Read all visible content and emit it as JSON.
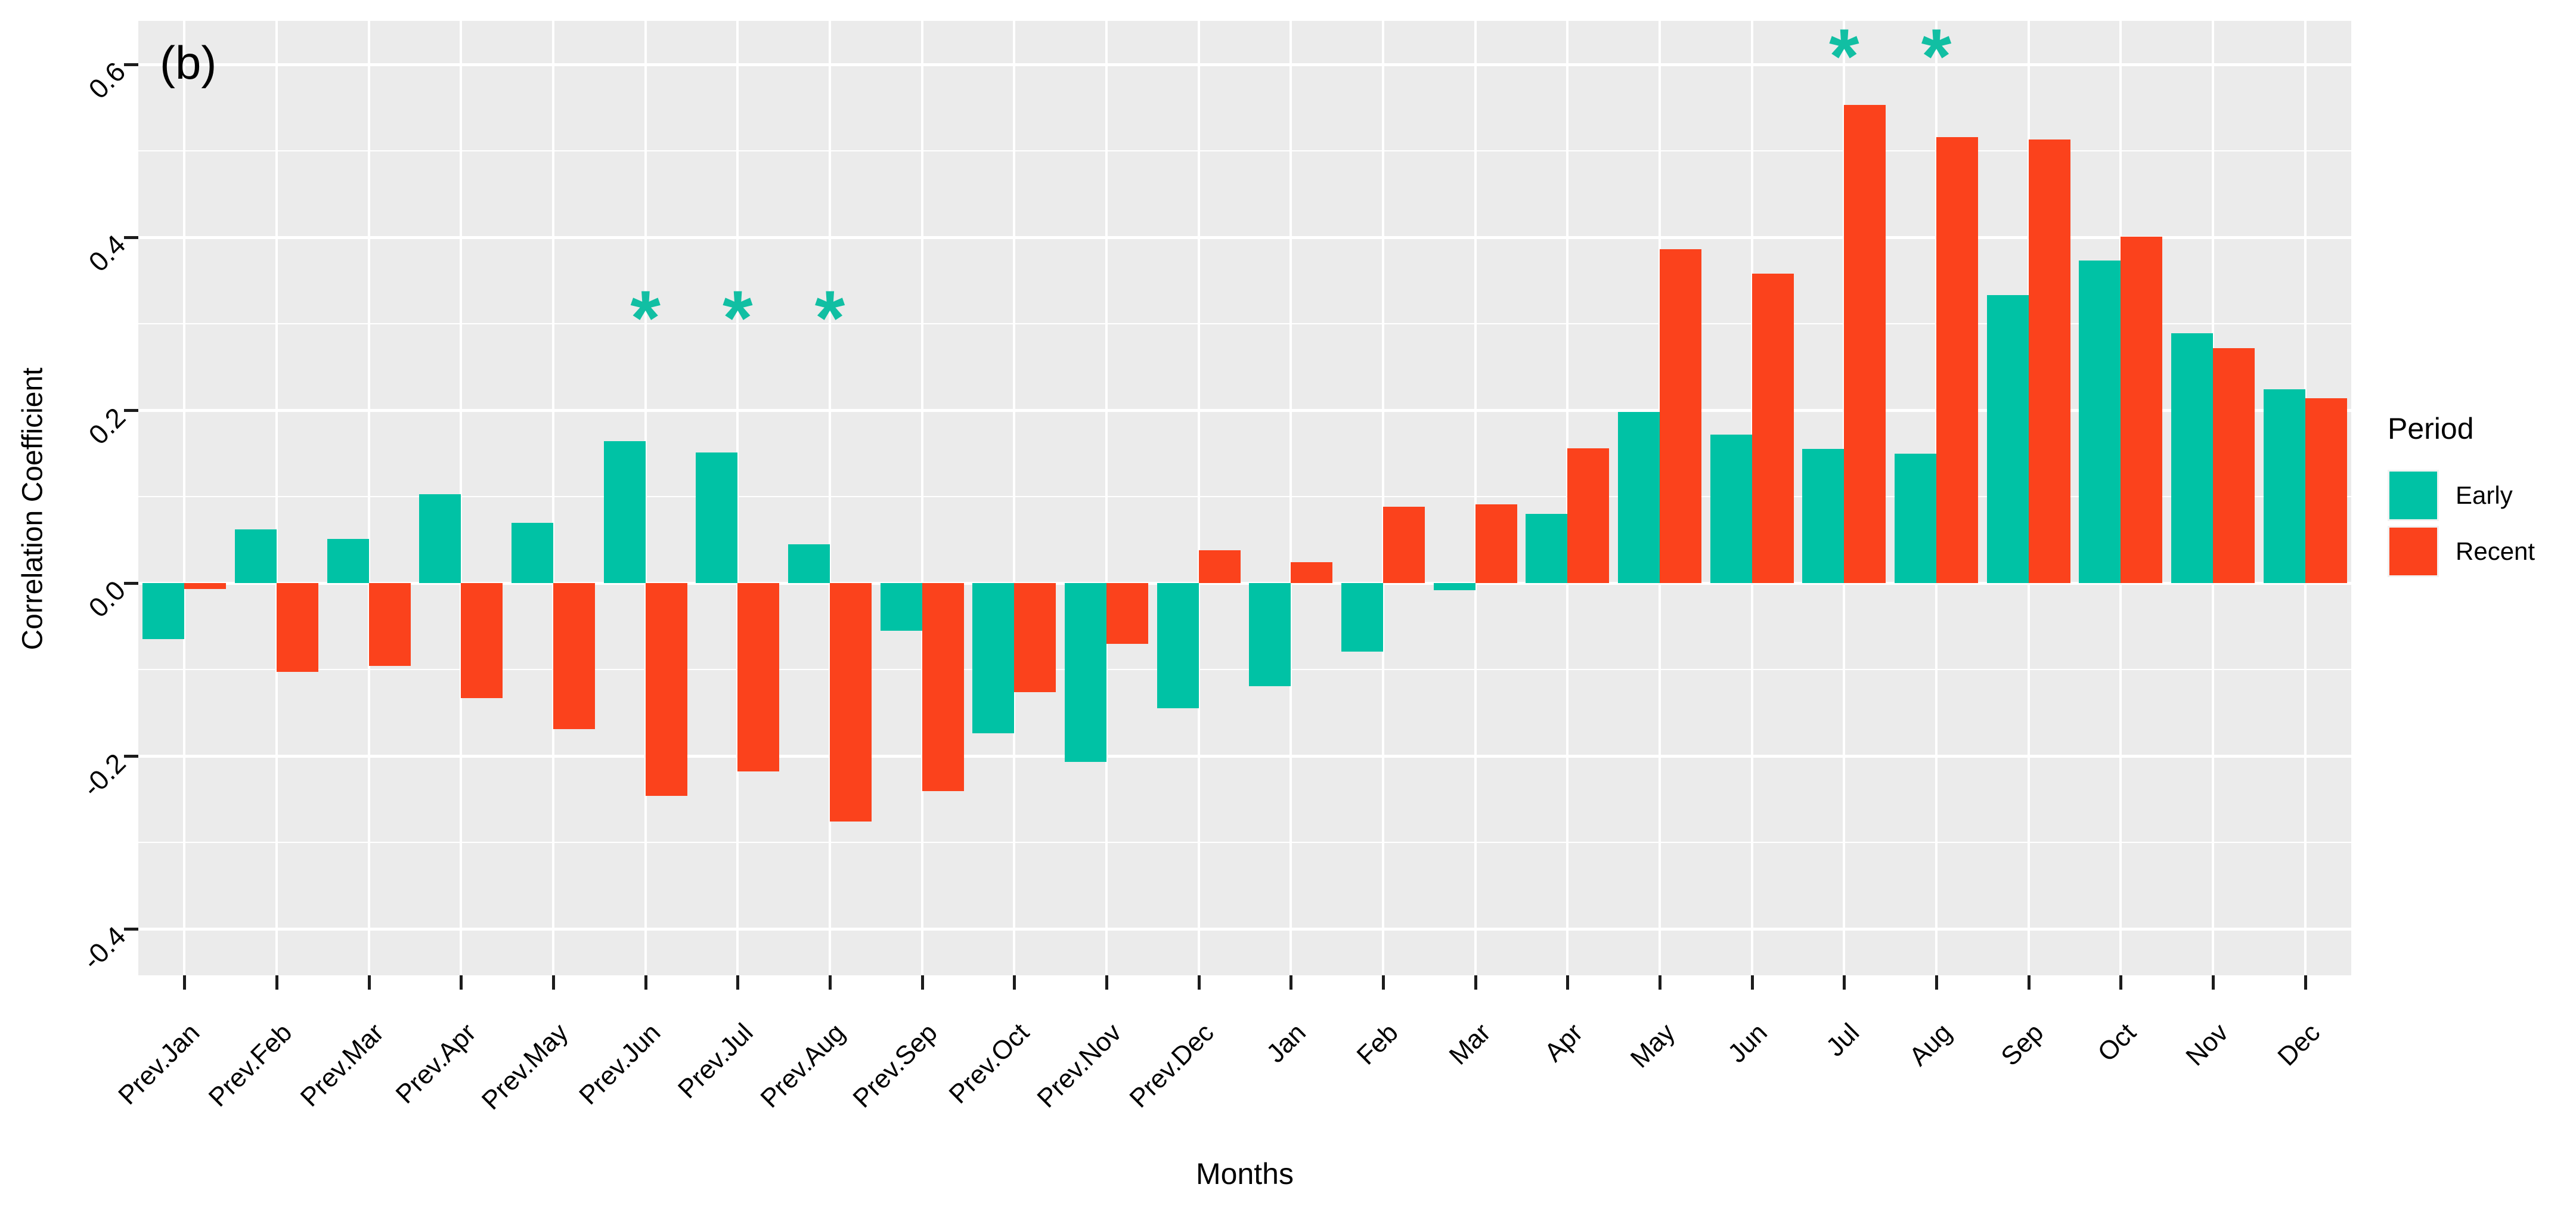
{
  "panel_label": "(b)",
  "legend": {
    "title": "Period",
    "items": [
      {
        "label": "Early"
      },
      {
        "label": "Recent"
      }
    ]
  },
  "chart_data": {
    "type": "bar",
    "title": "(b)",
    "xlabel": "Months",
    "ylabel": "Correlation Coefficient",
    "categories": [
      "Prev.Jan",
      "Prev.Feb",
      "Prev.Mar",
      "Prev.Apr",
      "Prev.May",
      "Prev.Jun",
      "Prev.Jul",
      "Prev.Aug",
      "Prev.Sep",
      "Prev.Oct",
      "Prev.Nov",
      "Prev.Dec",
      "Jan",
      "Feb",
      "Mar",
      "Apr",
      "May",
      "Jun",
      "Jul",
      "Aug",
      "Sep",
      "Oct",
      "Nov",
      "Dec"
    ],
    "series": [
      {
        "name": "Early",
        "color": "#00C2A5",
        "values": [
          -0.065,
          0.062,
          0.051,
          0.103,
          0.07,
          0.164,
          0.151,
          0.045,
          -0.055,
          -0.174,
          -0.207,
          -0.145,
          -0.119,
          -0.079,
          -0.008,
          0.08,
          0.198,
          0.172,
          0.155,
          0.15,
          0.333,
          0.373,
          0.289,
          0.224
        ]
      },
      {
        "name": "Recent",
        "color": "#FB421C",
        "values": [
          -0.007,
          -0.103,
          -0.096,
          -0.133,
          -0.169,
          -0.246,
          -0.218,
          -0.276,
          -0.241,
          -0.126,
          -0.07,
          0.038,
          0.024,
          0.088,
          0.091,
          0.156,
          0.386,
          0.358,
          0.553,
          0.516,
          0.513,
          0.401,
          0.272,
          0.214
        ]
      }
    ],
    "ylim": [
      -0.454,
      0.65
    ],
    "yticks": [
      0.6,
      0.4,
      0.2,
      0.0,
      -0.2,
      -0.4
    ],
    "ytick_labels": [
      "0.6",
      "0.4",
      "0.2",
      "0.0",
      "-0.2",
      "-0.4"
    ],
    "minor_gridlines": [
      0.5,
      0.3,
      0.1,
      -0.1,
      -0.3
    ],
    "grid": true,
    "legend_position": "right",
    "annotation_color": "#11BFA3",
    "annotations": [
      {
        "category": "Prev.Jun",
        "value": 0.322,
        "text": "*"
      },
      {
        "category": "Prev.Jul",
        "value": 0.322,
        "text": "*"
      },
      {
        "category": "Prev.Aug",
        "value": 0.322,
        "text": "*"
      },
      {
        "category": "Jul",
        "value": 0.625,
        "text": "*"
      },
      {
        "category": "Aug",
        "value": 0.625,
        "text": "*"
      }
    ]
  }
}
